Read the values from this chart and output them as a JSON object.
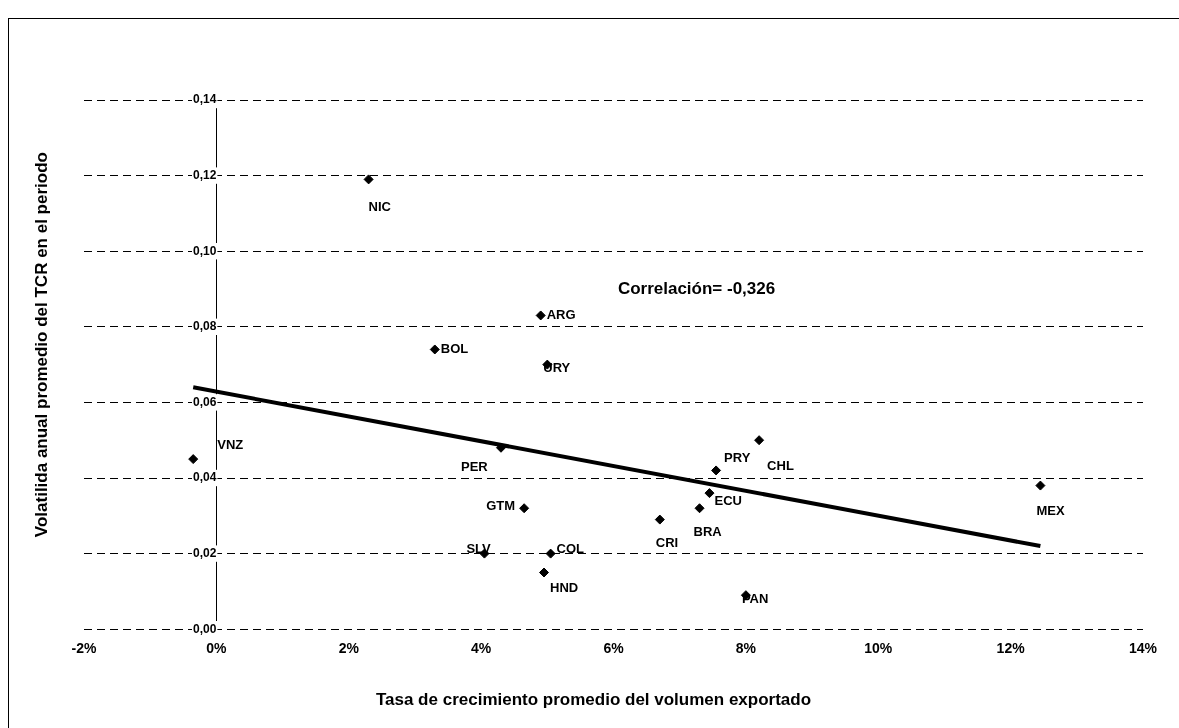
{
  "chart_data": {
    "type": "scatter",
    "xlabel": "Tasa de crecimiento promedio del volumen exportado",
    "ylabel": "Volatilida anual promedio del TCR en el periodo",
    "xlim": [
      -2,
      14
    ],
    "ylim": [
      0,
      0.14
    ],
    "xticks": [
      {
        "value": -2,
        "label": "-2%"
      },
      {
        "value": 0,
        "label": "0%"
      },
      {
        "value": 2,
        "label": "2%"
      },
      {
        "value": 4,
        "label": "4%"
      },
      {
        "value": 6,
        "label": "6%"
      },
      {
        "value": 8,
        "label": "8%"
      },
      {
        "value": 10,
        "label": "10%"
      },
      {
        "value": 12,
        "label": "12%"
      },
      {
        "value": 14,
        "label": "14%"
      }
    ],
    "yticks": [
      {
        "value": 0,
        "label": "0,00"
      },
      {
        "value": 0.02,
        "label": "0,02"
      },
      {
        "value": 0.04,
        "label": "0,04"
      },
      {
        "value": 0.06,
        "label": "0,06"
      },
      {
        "value": 0.08,
        "label": "0,08"
      },
      {
        "value": 0.1,
        "label": "0,10"
      },
      {
        "value": 0.12,
        "label": "0,12"
      },
      {
        "value": 0.14,
        "label": "0,14"
      }
    ],
    "grid": "y",
    "legend": false,
    "series": [
      {
        "marker": "diamond",
        "color": "#000000",
        "x": [
          2.3,
          3.3,
          4.9,
          5.0,
          4.3,
          -0.35,
          8.2,
          7.55,
          7.45,
          7.3,
          6.7,
          12.45,
          4.65,
          4.05,
          5.05,
          4.95,
          8.0
        ],
        "values": [
          0.119,
          0.074,
          0.083,
          0.07,
          0.048,
          0.045,
          0.05,
          0.042,
          0.036,
          0.032,
          0.029,
          0.038,
          0.032,
          0.02,
          0.02,
          0.015,
          0.009
        ]
      },
      {
        "type": "line",
        "color": "#000000",
        "x": [
          -0.35,
          12.45
        ],
        "values": [
          0.064,
          0.022
        ]
      }
    ],
    "annotations": [
      {
        "text": "NIC",
        "x": 2.3,
        "y": 0.119
      },
      {
        "text": "BOL",
        "x": 3.3,
        "y": 0.074
      },
      {
        "text": "ARG",
        "x": 4.9,
        "y": 0.083
      },
      {
        "text": "URY",
        "x": 5.0,
        "y": 0.07
      },
      {
        "text": "PER",
        "x": 4.3,
        "y": 0.048
      },
      {
        "text": "VNZ",
        "x": -0.35,
        "y": 0.045
      },
      {
        "text": "CHL",
        "x": 8.2,
        "y": 0.05
      },
      {
        "text": "PRY",
        "x": 7.55,
        "y": 0.042
      },
      {
        "text": "ECU",
        "x": 7.45,
        "y": 0.036
      },
      {
        "text": "BRA",
        "x": 7.3,
        "y": 0.032
      },
      {
        "text": "CRI",
        "x": 6.7,
        "y": 0.029
      },
      {
        "text": "MEX",
        "x": 12.45,
        "y": 0.038
      },
      {
        "text": "GTM",
        "x": 4.65,
        "y": 0.032
      },
      {
        "text": "SLV",
        "x": 4.05,
        "y": 0.02
      },
      {
        "text": "COL",
        "x": 5.05,
        "y": 0.02
      },
      {
        "text": "HND",
        "x": 4.95,
        "y": 0.015
      },
      {
        "text": "PAN",
        "x": 8.0,
        "y": 0.009
      },
      "Correlación= -0,326"
    ]
  }
}
